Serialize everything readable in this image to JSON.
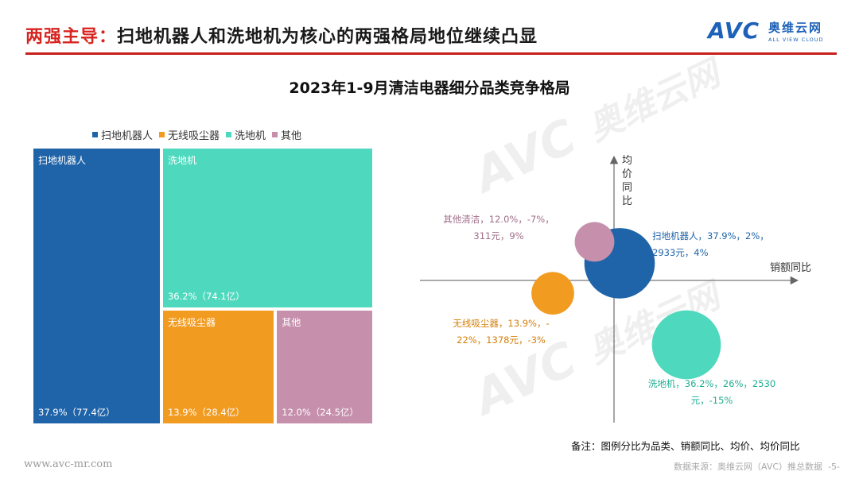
{
  "header": {
    "title_prefix": "两强主导：",
    "title_body": "扫地机器人和洗地机为核心的两强格局地位继续凸显",
    "logo_mark": "AVC",
    "logo_cn": "奥维云网",
    "logo_en": "ALL VIEW CLOUD"
  },
  "colors": {
    "accent": "#c9201c",
    "robot": "#1f64a8",
    "washer": "#4ed8bd",
    "vacuum": "#f29b21",
    "other": "#c68fab"
  },
  "watermark": {
    "mark": "AVC",
    "cn": "奥维云网",
    "en": "ALL VIEW CLOUD"
  },
  "chart_data": [
    {
      "type": "treemap",
      "title": "2023年1-9月清洁电器细分品类竞争格局",
      "legend_position": "top",
      "legend": [
        "扫地机器人",
        "无线吸尘器",
        "洗地机",
        "其他"
      ],
      "tiles": [
        {
          "name": "扫地机器人",
          "share": 37.9,
          "sales_label": "37.9%（77.4亿）",
          "color": "#1f64a8"
        },
        {
          "name": "洗地机",
          "share": 36.2,
          "sales_label": "36.2%（74.1亿）",
          "color": "#4ed8bd"
        },
        {
          "name": "无线吸尘器",
          "share": 13.9,
          "sales_label": "13.9%（28.4亿）",
          "color": "#f29b21"
        },
        {
          "name": "其他",
          "share": 12.0,
          "sales_label": "12.0%（24.5亿）",
          "color": "#c68fab"
        }
      ]
    },
    {
      "type": "scatter",
      "xlabel": "销额同比",
      "ylabel": "均价同比",
      "points": [
        {
          "name": "扫地机器人",
          "share": 37.9,
          "x": 2,
          "price": 2933,
          "y": 4,
          "color": "#1f64a8",
          "label_lines": [
            "扫地机器人，37.9%，2%，",
            "2933元，4%"
          ]
        },
        {
          "name": "洗地机",
          "share": 36.2,
          "x": 26,
          "price": 2530,
          "y": -15,
          "color": "#4ed8bd",
          "label_lines": [
            "洗地机，36.2%，26%，2530",
            "元，-15%"
          ]
        },
        {
          "name": "无线吸尘器",
          "share": 13.9,
          "x": -22,
          "price": 1378,
          "y": -3,
          "color": "#f29b21",
          "label_lines": [
            "无线吸尘器，13.9%，-",
            "22%，1378元，-3%"
          ]
        },
        {
          "name": "其他清洁",
          "share": 12.0,
          "x": -7,
          "price": 311,
          "y": 9,
          "color": "#c68fab",
          "label_lines": [
            "其他清洁，12.0%，-7%，",
            "311元，9%"
          ]
        }
      ]
    }
  ],
  "note": "备注：图例分比为品类、销额同比、均价、均价同比",
  "footer": {
    "url": "www.avc-mr.com",
    "source": "数据来源：奥维云网（AVC）推总数据",
    "page": "-5-"
  }
}
